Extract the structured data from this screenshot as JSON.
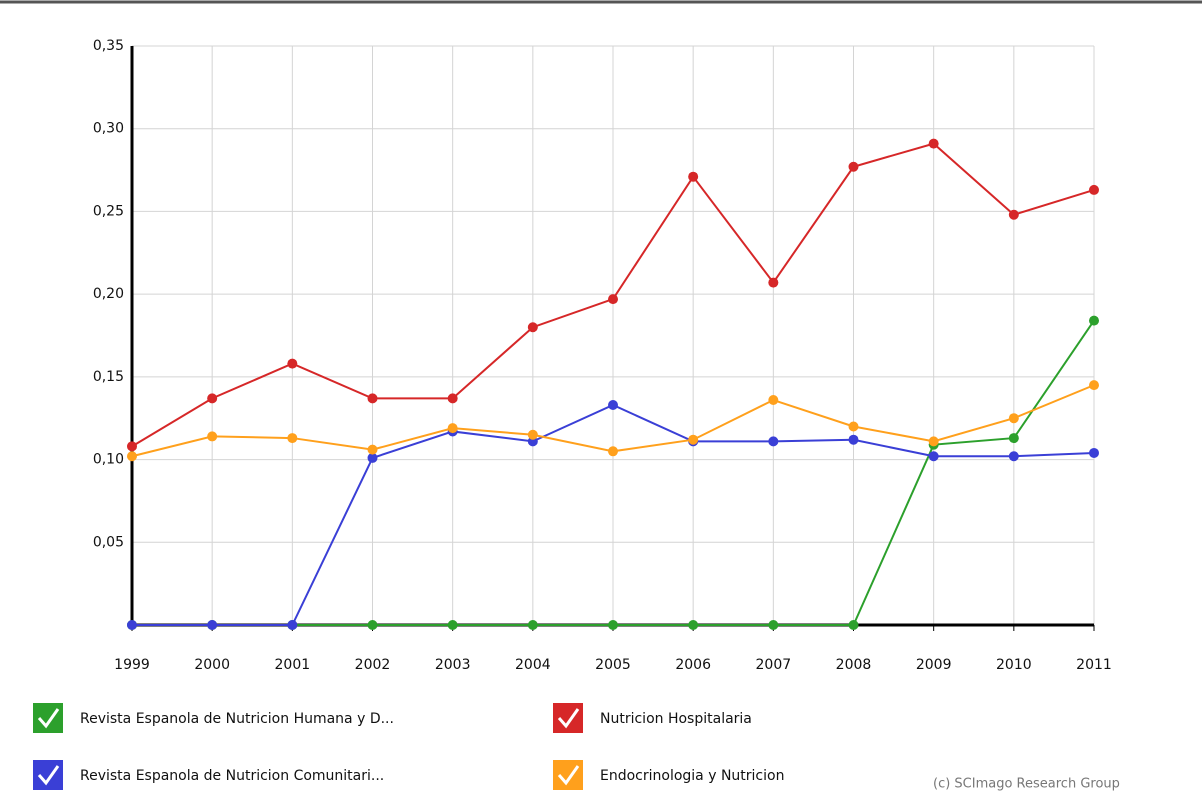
{
  "chart_data": {
    "type": "line",
    "categories": [
      "1999",
      "2000",
      "2001",
      "2002",
      "2003",
      "2004",
      "2005",
      "2006",
      "2007",
      "2008",
      "2009",
      "2010",
      "2011"
    ],
    "series": [
      {
        "name": "Revista Espanola de Nutricion Humana y D...",
        "color": "#2ca02c",
        "values": [
          0,
          0,
          0,
          0,
          0,
          0,
          0,
          0,
          0,
          0,
          0.109,
          0.113,
          0.184
        ]
      },
      {
        "name": "Nutricion Hospitalaria",
        "color": "#d62728",
        "values": [
          0.108,
          0.137,
          0.158,
          0.137,
          0.137,
          0.18,
          0.197,
          0.271,
          0.207,
          0.277,
          0.291,
          0.248,
          0.263
        ]
      },
      {
        "name": "Revista Espanola de Nutricion Comunitari...",
        "color": "#3a3fd6",
        "values": [
          0,
          0,
          0,
          0.101,
          0.117,
          0.111,
          0.133,
          0.111,
          0.111,
          0.112,
          0.102,
          0.102,
          0.104
        ]
      },
      {
        "name": "Endocrinologia y Nutricion",
        "color": "#ffa01c",
        "values": [
          0.102,
          0.114,
          0.113,
          0.106,
          0.119,
          0.115,
          0.105,
          0.112,
          0.136,
          0.12,
          0.111,
          0.125,
          0.145
        ]
      }
    ],
    "ylim": [
      0,
      0.35
    ],
    "yticks": [
      {
        "value": 0.05,
        "label": "0,05"
      },
      {
        "value": 0.1,
        "label": "0,10"
      },
      {
        "value": 0.15,
        "label": "0,15"
      },
      {
        "value": 0.2,
        "label": "0,20"
      },
      {
        "value": 0.25,
        "label": "0,25"
      },
      {
        "value": 0.3,
        "label": "0,30"
      },
      {
        "value": 0.35,
        "label": "0,35"
      }
    ],
    "grid": true,
    "annotation": "(c) SCImago Research Group"
  }
}
